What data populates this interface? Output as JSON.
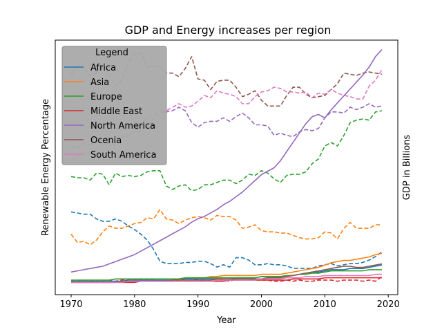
{
  "chart_data": {
    "type": "line",
    "title": "GDP and Energy increases per region",
    "xlabel": "Year",
    "ylabel_left": "Renewable Energy Percentage",
    "ylabel_right": "GDP in Billions",
    "xlim": [
      1970,
      2019
    ],
    "x_ticks": [
      1970,
      1980,
      1990,
      2000,
      2010,
      2020
    ],
    "x": [
      1970,
      1971,
      1972,
      1973,
      1974,
      1975,
      1976,
      1977,
      1978,
      1979,
      1980,
      1981,
      1982,
      1983,
      1984,
      1985,
      1986,
      1987,
      1988,
      1989,
      1990,
      1991,
      1992,
      1993,
      1994,
      1995,
      1996,
      1997,
      1998,
      1999,
      2000,
      2001,
      2002,
      2003,
      2004,
      2005,
      2006,
      2007,
      2008,
      2009,
      2010,
      2011,
      2012,
      2013,
      2014,
      2015,
      2016,
      2017,
      2018,
      2019
    ],
    "grid": false,
    "legend": {
      "title": "Legend",
      "placement": "top-left",
      "style": "grey box",
      "entries": [
        "Africa",
        "Asia",
        "Europe",
        "Middle East",
        "North America",
        "Ocenia",
        "South America"
      ]
    },
    "axes_note": "Dashed lines: Renewable Energy Percentage (left axis, unlabeled ticks, 0-100 scale). Solid lines: GDP in Billions (right axis, unlabeled ticks, 0-100 relative scale).",
    "series": [
      {
        "name": "Africa",
        "color": "#1f77b4",
        "style": "dashed",
        "axis": "left",
        "values": [
          30.5,
          30.0,
          29.5,
          29.5,
          27.5,
          26.5,
          26.5,
          27.5,
          26.5,
          24.5,
          23.0,
          21.0,
          18.5,
          14.5,
          9.5,
          8.5,
          8.5,
          8.5,
          9.0,
          9.0,
          9.5,
          9.5,
          8.5,
          7.0,
          8.0,
          7.0,
          11.0,
          11.0,
          10.0,
          8.0,
          8.0,
          8.5,
          8.0,
          8.0,
          7.5,
          6.5,
          6.5,
          6.5,
          6.5,
          7.5,
          8.0,
          8.5,
          7.5,
          8.0,
          8.5,
          8.5,
          9.0,
          10.0,
          11.5,
          13.5
        ]
      },
      {
        "name": "Asia",
        "color": "#ff7f0e",
        "style": "dashed",
        "axis": "left",
        "values": [
          21.0,
          17.5,
          18.0,
          16.5,
          18.5,
          22.0,
          24.5,
          23.5,
          23.5,
          24.5,
          25.5,
          26.0,
          28.0,
          27.5,
          31.5,
          27.5,
          27.0,
          25.5,
          27.0,
          28.0,
          28.5,
          28.0,
          27.0,
          29.0,
          28.5,
          28.5,
          27.0,
          23.5,
          24.0,
          25.0,
          22.5,
          22.0,
          22.0,
          21.5,
          21.5,
          20.5,
          19.5,
          19.0,
          19.0,
          19.5,
          22.0,
          21.5,
          19.0,
          23.5,
          26.0,
          23.5,
          23.5,
          23.5,
          25.0,
          25.0
        ]
      },
      {
        "name": "Europe",
        "color": "#2ca02c",
        "style": "dashed",
        "axis": "left",
        "values": [
          45.5,
          45.0,
          45.0,
          44.0,
          47.0,
          46.5,
          42.0,
          47.0,
          45.5,
          46.0,
          45.5,
          46.0,
          47.5,
          48.0,
          48.0,
          41.5,
          40.0,
          41.5,
          42.0,
          39.5,
          40.0,
          42.0,
          42.0,
          43.0,
          44.0,
          44.0,
          42.5,
          44.0,
          46.5,
          46.0,
          48.0,
          47.0,
          44.5,
          43.0,
          46.0,
          46.5,
          46.5,
          47.5,
          51.0,
          53.0,
          58.5,
          60.0,
          58.5,
          63.0,
          68.5,
          69.5,
          70.0,
          69.5,
          73.0,
          73.5
        ]
      },
      {
        "name": "Middle East",
        "color": "#d62728",
        "style": "dashed",
        "axis": "left",
        "values": [
          1.0,
          1.0,
          1.5,
          1.0,
          1.0,
          1.0,
          1.5,
          1.0,
          1.5,
          2.0,
          1.5,
          1.5,
          1.5,
          1.5,
          1.0,
          1.0,
          1.0,
          1.5,
          2.0,
          2.0,
          1.5,
          1.0,
          1.0,
          1.5,
          1.5,
          1.0,
          2.0,
          2.0,
          2.0,
          1.5,
          1.5,
          1.5,
          1.0,
          1.0,
          1.5,
          1.0,
          1.5,
          1.0,
          1.0,
          1.5,
          1.5,
          1.5,
          1.0,
          1.5,
          1.5,
          1.5,
          1.0,
          1.5,
          1.0,
          3.0
        ]
      },
      {
        "name": "North America",
        "color": "#9467bd",
        "style": "dashed",
        "axis": "left",
        "values": [
          58.0,
          58.0,
          59.5,
          59.0,
          60.5,
          61.0,
          59.5,
          59.0,
          62.5,
          62.5,
          64.5,
          67.0,
          71.0,
          71.5,
          73.5,
          73.0,
          73.5,
          75.0,
          73.5,
          68.5,
          66.5,
          68.5,
          69.0,
          69.0,
          70.5,
          69.0,
          71.0,
          72.5,
          70.5,
          67.5,
          67.5,
          67.0,
          63.0,
          64.0,
          63.0,
          62.5,
          64.5,
          65.5,
          65.0,
          66.0,
          70.5,
          73.0,
          73.0,
          72.5,
          75.0,
          74.0,
          75.0,
          76.5,
          75.0,
          75.5
        ]
      },
      {
        "name": "Ocenia",
        "color": "#8c564b",
        "style": "dashed",
        "axis": "left",
        "values": [
          89.0,
          92.5,
          91.5,
          88.5,
          89.5,
          93.5,
          88.5,
          84.0,
          86.5,
          94.0,
          98.0,
          98.0,
          92.0,
          92.5,
          92.0,
          89.5,
          89.5,
          88.0,
          91.5,
          96.5,
          87.0,
          86.5,
          82.5,
          86.0,
          86.5,
          86.5,
          83.5,
          79.5,
          80.5,
          82.0,
          78.0,
          75.5,
          75.5,
          75.5,
          80.0,
          83.5,
          83.5,
          80.5,
          79.0,
          79.5,
          80.0,
          82.5,
          85.0,
          89.5,
          89.0,
          88.5,
          89.5,
          90.0,
          89.5,
          89.0
        ]
      },
      {
        "name": "South America",
        "color": "#e377c2",
        "style": "dashed",
        "axis": "left",
        "values": [
          52.0,
          54.5,
          55.5,
          55.0,
          57.0,
          59.5,
          60.0,
          61.0,
          62.0,
          63.5,
          64.0,
          65.5,
          67.5,
          70.0,
          72.0,
          73.5,
          75.0,
          76.5,
          75.0,
          75.5,
          77.5,
          80.0,
          79.0,
          82.0,
          81.0,
          80.5,
          79.5,
          76.5,
          76.5,
          79.5,
          81.5,
          82.0,
          83.5,
          83.0,
          81.5,
          81.5,
          81.0,
          81.5,
          79.0,
          81.0,
          80.5,
          82.5,
          81.0,
          80.0,
          79.5,
          78.5,
          78.5,
          84.0,
          86.5,
          91.0
        ]
      },
      {
        "name": "Africa",
        "color": "#1f77b4",
        "style": "solid",
        "axis": "right",
        "legend": false,
        "values": [
          1.0,
          1.0,
          1.0,
          1.0,
          1.0,
          1.0,
          1.0,
          1.0,
          1.0,
          1.5,
          1.5,
          1.5,
          1.5,
          1.5,
          1.5,
          1.5,
          1.5,
          2.0,
          2.0,
          2.0,
          2.0,
          2.0,
          2.0,
          2.0,
          2.0,
          2.0,
          2.5,
          2.5,
          2.5,
          2.5,
          3.0,
          3.0,
          3.0,
          3.0,
          3.5,
          3.5,
          4.0,
          4.5,
          5.0,
          5.0,
          5.5,
          6.0,
          6.0,
          6.0,
          6.5,
          6.5,
          6.5,
          7.0,
          7.5,
          8.0
        ]
      },
      {
        "name": "Asia",
        "color": "#ff7f0e",
        "style": "solid",
        "axis": "right",
        "legend": false,
        "values": [
          1.5,
          1.5,
          1.5,
          1.5,
          1.5,
          1.5,
          1.5,
          2.0,
          2.0,
          2.0,
          2.0,
          2.0,
          2.0,
          2.0,
          2.0,
          2.0,
          2.0,
          2.0,
          2.5,
          2.5,
          2.5,
          2.5,
          3.0,
          3.0,
          3.5,
          3.5,
          3.5,
          3.5,
          3.5,
          3.5,
          4.0,
          4.0,
          4.0,
          4.0,
          4.5,
          5.0,
          5.5,
          6.0,
          6.5,
          7.0,
          8.0,
          9.0,
          9.5,
          10.0,
          10.0,
          10.5,
          11.0,
          11.5,
          12.5,
          13.0
        ]
      },
      {
        "name": "Europe",
        "color": "#2ca02c",
        "style": "solid",
        "axis": "right",
        "legend": false,
        "values": [
          1.5,
          1.5,
          1.5,
          1.5,
          1.5,
          1.5,
          1.5,
          2.0,
          2.0,
          2.0,
          2.0,
          2.0,
          2.0,
          2.0,
          2.0,
          2.0,
          2.0,
          2.0,
          2.5,
          2.5,
          2.5,
          2.5,
          2.5,
          2.5,
          2.5,
          2.5,
          2.5,
          2.5,
          2.5,
          2.5,
          3.0,
          3.0,
          3.0,
          3.0,
          3.5,
          3.5,
          4.0,
          4.0,
          4.5,
          4.5,
          5.0,
          5.5,
          5.5,
          5.5,
          5.5,
          5.5,
          5.5,
          6.0,
          6.0,
          6.0
        ]
      },
      {
        "name": "Middle East",
        "color": "#d62728",
        "style": "solid",
        "axis": "right",
        "legend": false,
        "values": [
          0.5,
          0.5,
          0.5,
          0.5,
          0.5,
          0.5,
          0.5,
          0.5,
          0.5,
          0.5,
          0.5,
          1.0,
          1.0,
          1.0,
          1.0,
          1.0,
          1.0,
          1.0,
          1.0,
          1.0,
          1.0,
          1.0,
          1.0,
          1.0,
          1.0,
          1.5,
          1.5,
          1.5,
          1.5,
          1.5,
          1.5,
          1.5,
          1.5,
          1.5,
          1.5,
          2.0,
          2.0,
          2.0,
          2.0,
          2.0,
          2.5,
          2.5,
          2.5,
          2.5,
          2.5,
          2.5,
          2.5,
          2.5,
          2.5,
          2.5
        ]
      },
      {
        "name": "North America",
        "color": "#9467bd",
        "style": "solid",
        "axis": "right",
        "legend": false,
        "values": [
          5.0,
          5.5,
          6.0,
          6.5,
          7.0,
          7.5,
          8.5,
          9.5,
          10.5,
          11.5,
          12.5,
          14.0,
          15.5,
          17.0,
          18.5,
          20.0,
          21.5,
          23.0,
          24.5,
          26.5,
          28.0,
          29.0,
          30.5,
          32.0,
          34.0,
          35.5,
          37.5,
          39.5,
          42.0,
          44.5,
          47.0,
          48.5,
          50.0,
          53.0,
          57.0,
          61.0,
          65.0,
          69.0,
          72.0,
          73.0,
          71.5,
          75.0,
          78.0,
          81.0,
          84.0,
          87.0,
          90.0,
          93.5,
          98.0,
          101.0
        ]
      },
      {
        "name": "Ocenia",
        "color": "#8c564b",
        "style": "solid",
        "axis": "right",
        "legend": false,
        "values": [
          0.5,
          0.5,
          0.5,
          0.5,
          0.5,
          0.5,
          0.5,
          0.5,
          1.0,
          1.0,
          1.0,
          1.0,
          1.0,
          1.0,
          1.0,
          1.0,
          1.5,
          1.5,
          1.5,
          1.5,
          1.5,
          1.5,
          1.5,
          2.0,
          2.0,
          2.0,
          2.0,
          2.0,
          2.0,
          2.0,
          2.0,
          2.5,
          2.5,
          2.5,
          3.0,
          3.5,
          4.0,
          4.5,
          5.0,
          5.5,
          6.0,
          6.5,
          7.0,
          7.5,
          7.5,
          7.0,
          7.0,
          7.5,
          8.0,
          8.5
        ]
      },
      {
        "name": "South America",
        "color": "#e377c2",
        "style": "solid",
        "axis": "right",
        "legend": false,
        "values": [
          0.5,
          0.5,
          0.5,
          0.5,
          0.5,
          0.5,
          0.5,
          0.5,
          0.5,
          1.0,
          1.0,
          1.0,
          1.0,
          1.0,
          1.0,
          1.0,
          1.0,
          1.0,
          1.0,
          1.0,
          1.0,
          1.0,
          1.0,
          1.5,
          1.5,
          1.5,
          1.5,
          1.5,
          1.5,
          1.5,
          2.0,
          2.0,
          2.0,
          2.0,
          2.5,
          2.5,
          2.5,
          3.0,
          3.0,
          3.0,
          3.5,
          3.5,
          3.5,
          3.5,
          3.5,
          3.5,
          3.5,
          3.5,
          4.0,
          4.0
        ]
      }
    ]
  }
}
